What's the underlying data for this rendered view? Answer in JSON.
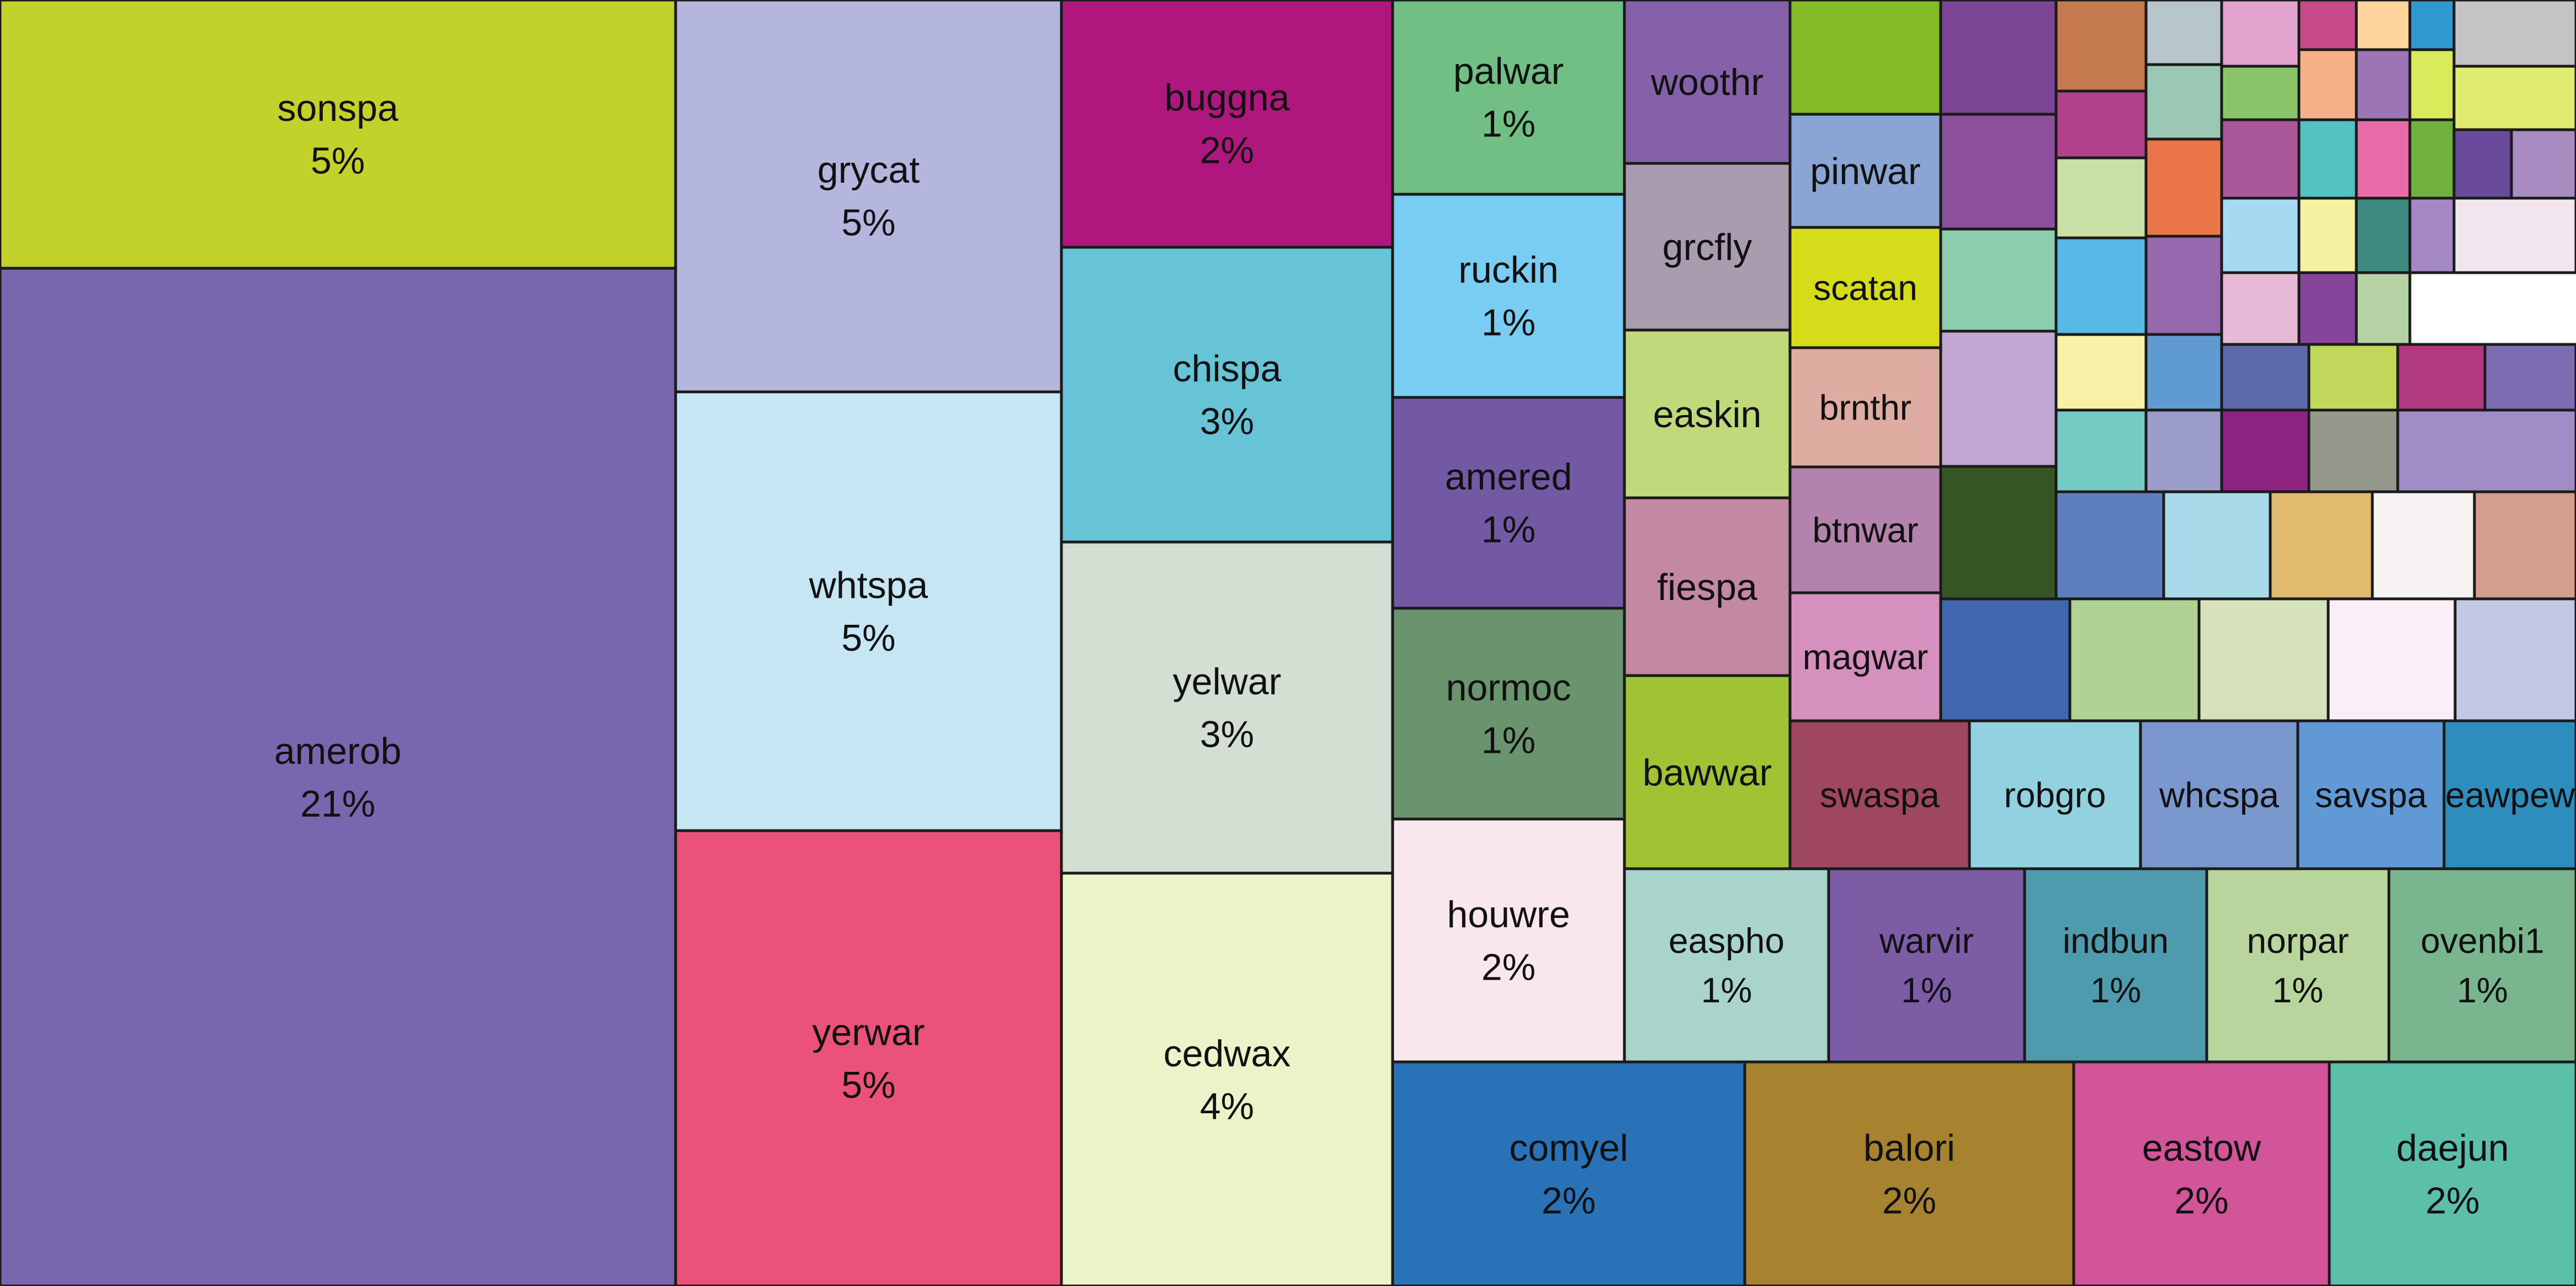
{
  "chart_data": {
    "type": "treemap",
    "labeled_cells": [
      {
        "name": "amerob",
        "pct": "21%",
        "color": "#7866ae"
      },
      {
        "name": "sonspa",
        "pct": "5%",
        "color": "#c2d22a"
      },
      {
        "name": "grycat",
        "pct": "5%",
        "color": "#b5b6dd"
      },
      {
        "name": "whtspa",
        "pct": "5%",
        "color": "#c7e6f3"
      },
      {
        "name": "yerwar",
        "pct": "5%",
        "color": "#ea5279"
      },
      {
        "name": "buggna",
        "pct": "2%",
        "color": "#b0177e"
      },
      {
        "name": "chispa",
        "pct": "3%",
        "color": "#67c4d6"
      },
      {
        "name": "yelwar",
        "pct": "3%",
        "color": "#d3dfd2"
      },
      {
        "name": "cedwax",
        "pct": "4%",
        "color": "#ebf3c9"
      },
      {
        "name": "palwar",
        "pct": "1%",
        "color": "#72bf86"
      },
      {
        "name": "ruckin",
        "pct": "1%",
        "color": "#79cdf2"
      },
      {
        "name": "amered",
        "pct": "1%",
        "color": "#7358a4"
      },
      {
        "name": "normoc",
        "pct": "1%",
        "color": "#6a946d"
      },
      {
        "name": "houwre",
        "pct": "2%",
        "color": "#f9e7ee"
      },
      {
        "name": "woothr",
        "pct": "",
        "color": "#8461a8"
      },
      {
        "name": "grcfly",
        "pct": "",
        "color": "#a99cae"
      },
      {
        "name": "easkin",
        "pct": "",
        "color": "#c0d97b"
      },
      {
        "name": "fiespa",
        "pct": "",
        "color": "#c388a2"
      },
      {
        "name": "bawwar",
        "pct": "",
        "color": "#9fc332"
      },
      {
        "name": "pinwar",
        "pct": "",
        "color": "#8aa4d4"
      },
      {
        "name": "scatan",
        "pct": "",
        "color": "#d7dc1a"
      },
      {
        "name": "brnthr",
        "pct": "",
        "color": "#deaca0"
      },
      {
        "name": "btnwar",
        "pct": "",
        "color": "#b383ad"
      },
      {
        "name": "magwar",
        "pct": "",
        "color": "#d690bd"
      },
      {
        "name": "swaspa",
        "pct": "",
        "color": "#a04760"
      },
      {
        "name": "robgro",
        "pct": "",
        "color": "#92d1e0"
      },
      {
        "name": "whcspa",
        "pct": "",
        "color": "#7a98cd"
      },
      {
        "name": "savspa",
        "pct": "",
        "color": "#6099d5"
      },
      {
        "name": "eawpew",
        "pct": "",
        "color": "#2d8ebd"
      },
      {
        "name": "easpho",
        "pct": "1%",
        "color": "#a8d4cb"
      },
      {
        "name": "warvir",
        "pct": "1%",
        "color": "#7b5ca5"
      },
      {
        "name": "indbun",
        "pct": "1%",
        "color": "#4f9bae"
      },
      {
        "name": "norpar",
        "pct": "1%",
        "color": "#b8d59e"
      },
      {
        "name": "ovenbi1",
        "pct": "1%",
        "color": "#79b58f"
      },
      {
        "name": "comyel",
        "pct": "2%",
        "color": "#2a72b8"
      },
      {
        "name": "balori",
        "pct": "2%",
        "color": "#a8832f"
      },
      {
        "name": "eastow",
        "pct": "2%",
        "color": "#d2559a"
      },
      {
        "name": "daejun",
        "pct": "2%",
        "color": "#5cbfaa"
      }
    ],
    "unlabeled_cell_colors": [
      "#84bc27",
      "#7b4494",
      "#c67a4f",
      "#b7c6cc",
      "#e3a3cf",
      "#c74a8b",
      "#fdd59d",
      "#2f98d0",
      "#c4c4c4",
      "#8c4f9c",
      "#b1418b",
      "#9bc8b4",
      "#8ac468",
      "#f7b188",
      "#9c75b5",
      "#c8e0a3",
      "#e97549",
      "#aa5799",
      "#55c2c2",
      "#e86aa6",
      "#d9ea5b",
      "#e0ec6f",
      "#8cccaf",
      "#57b9e6",
      "#9668ad",
      "#a6daf2",
      "#f4f1a3",
      "#3d8a80",
      "#6fb13c",
      "#6a4a9a",
      "#a88bc1",
      "#c1a6d1",
      "#f8f1a7",
      "#5f9ad1",
      "#e7b9d7",
      "#86449a",
      "#b6d2a4",
      "#a488c5",
      "#f2e5ed",
      "#5c69ad",
      "#c1d85d",
      "#b0397f",
      "#7e6cb2",
      "#355624",
      "#75cac4",
      "#9c9ccb",
      "#8e2382",
      "#95998b",
      "#a08dc6",
      "#5d7fbd",
      "#a8daea",
      "#e0ba6e",
      "#f5f2f1",
      "#d39e8d",
      "#4066ae",
      "#b0d395",
      "#d6e2bc",
      "#fbeef6",
      "#c3c8e5"
    ]
  }
}
